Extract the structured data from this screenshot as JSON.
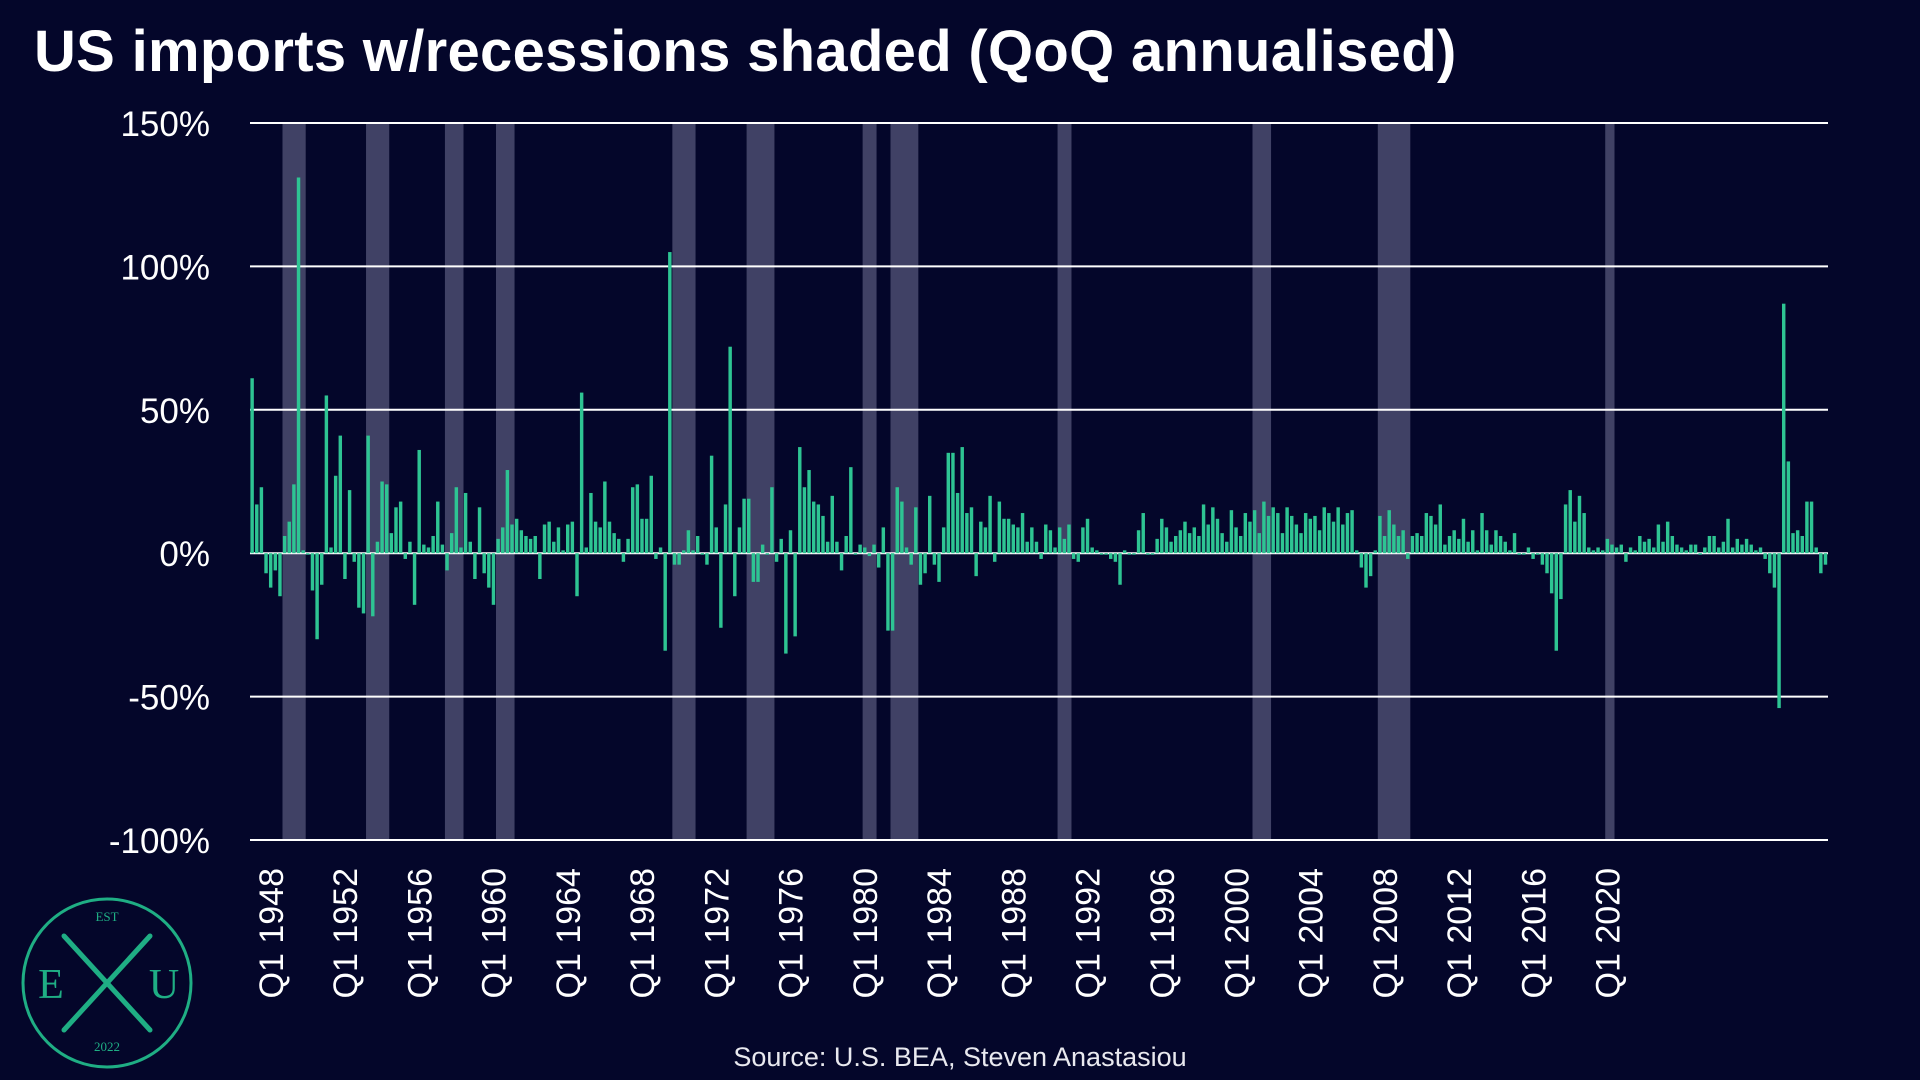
{
  "title": "US imports w/recessions shaded (QoQ annualised)",
  "source": "Source: U.S. BEA, Steven Anastasiou",
  "logo": {
    "top": "EST",
    "left": "E",
    "right": "U",
    "bottom": "2022"
  },
  "colors": {
    "background": "#04062a",
    "bar": "#2ec493",
    "recession": "#a3a3c4",
    "grid": "#ffffff",
    "logo": "#1fae84"
  },
  "chart_data": {
    "type": "bar",
    "xlabel": "",
    "ylabel": "",
    "ylim": [
      -1.0,
      1.5
    ],
    "y_ticks": [
      1.5,
      1.0,
      0.5,
      0.0,
      -0.5,
      -1.0
    ],
    "y_tick_labels": [
      "150%",
      "100%",
      "50%",
      "0%",
      "-50%",
      "-100%"
    ],
    "x_start": "Q1 1947",
    "x_tick_labels": [
      "Q1 1948",
      "Q1 1952",
      "Q1 1956",
      "Q1 1960",
      "Q1 1964",
      "Q1 1968",
      "Q1 1972",
      "Q1 1976",
      "Q1 1980",
      "Q1 1984",
      "Q1 1988",
      "Q1 1992",
      "Q1 1996",
      "Q1 2000",
      "Q1 2004",
      "Q1 2008",
      "Q1 2012",
      "Q1 2016",
      "Q1 2020"
    ],
    "recessions": [
      [
        "Q4 1948",
        "Q4 1949"
      ],
      [
        "Q2 1953",
        "Q2 1954"
      ],
      [
        "Q3 1957",
        "Q2 1958"
      ],
      [
        "Q2 1960",
        "Q1 1961"
      ],
      [
        "Q4 1969",
        "Q4 1970"
      ],
      [
        "Q4 1973",
        "Q1 1975"
      ],
      [
        "Q1 1980",
        "Q3 1980"
      ],
      [
        "Q3 1981",
        "Q4 1982"
      ],
      [
        "Q3 1990",
        "Q1 1991"
      ],
      [
        "Q1 2001",
        "Q4 2001"
      ],
      [
        "Q4 2007",
        "Q2 2009"
      ],
      [
        "Q1 2020",
        "Q2 2020"
      ]
    ],
    "values": [
      0.61,
      0.17,
      0.23,
      -0.07,
      -0.12,
      -0.06,
      -0.15,
      0.06,
      0.11,
      0.24,
      1.31,
      0.01,
      0.0,
      -0.13,
      -0.3,
      -0.11,
      0.55,
      0.02,
      0.27,
      0.41,
      -0.09,
      0.22,
      -0.03,
      -0.19,
      -0.21,
      0.41,
      -0.22,
      0.04,
      0.25,
      0.24,
      0.07,
      0.16,
      0.18,
      -0.02,
      0.04,
      -0.18,
      0.36,
      0.03,
      0.02,
      0.06,
      0.18,
      0.03,
      -0.06,
      0.07,
      0.23,
      0.02,
      0.21,
      0.04,
      -0.09,
      0.16,
      -0.07,
      -0.12,
      -0.18,
      0.05,
      0.09,
      0.29,
      0.1,
      0.12,
      0.08,
      0.06,
      0.05,
      0.06,
      -0.09,
      0.1,
      0.11,
      0.04,
      0.09,
      0.01,
      0.1,
      0.11,
      -0.15,
      0.56,
      0.02,
      0.21,
      0.11,
      0.09,
      0.25,
      0.11,
      0.07,
      0.05,
      -0.03,
      0.05,
      0.23,
      0.24,
      0.12,
      0.12,
      0.27,
      -0.02,
      0.02,
      -0.34,
      1.05,
      -0.04,
      -0.04,
      0.01,
      0.08,
      0.01,
      0.06,
      0.0,
      -0.04,
      0.34,
      0.09,
      -0.26,
      0.17,
      0.72,
      -0.15,
      0.09,
      0.19,
      0.19,
      -0.1,
      -0.1,
      0.03,
      0.0,
      0.23,
      -0.03,
      0.05,
      -0.35,
      0.08,
      -0.29,
      0.37,
      0.23,
      0.29,
      0.18,
      0.17,
      0.13,
      0.04,
      0.2,
      0.04,
      -0.06,
      0.06,
      0.3,
      0.0,
      0.03,
      0.02,
      -0.01,
      0.03,
      -0.05,
      0.09,
      -0.27,
      -0.27,
      0.23,
      0.18,
      0.02,
      -0.04,
      0.16,
      -0.11,
      -0.07,
      0.2,
      -0.04,
      -0.1,
      0.09,
      0.35,
      0.35,
      0.21,
      0.37,
      0.14,
      0.16,
      -0.08,
      0.11,
      0.09,
      0.2,
      -0.03,
      0.18,
      0.12,
      0.12,
      0.1,
      0.09,
      0.14,
      0.04,
      0.09,
      0.04,
      -0.02,
      0.1,
      0.08,
      0.02,
      0.09,
      0.05,
      0.1,
      -0.02,
      -0.03,
      0.09,
      0.12,
      0.02,
      0.01,
      0.0,
      0.0,
      -0.02,
      -0.03,
      -0.11,
      0.01,
      0.0,
      0.0,
      0.08,
      0.14,
      0.0,
      0.0,
      0.05,
      0.12,
      0.09,
      0.04,
      0.06,
      0.08,
      0.11,
      0.07,
      0.09,
      0.06,
      0.17,
      0.1,
      0.16,
      0.12,
      0.07,
      0.04,
      0.15,
      0.09,
      0.06,
      0.14,
      0.11,
      0.15,
      0.07,
      0.18,
      0.13,
      0.16,
      0.14,
      0.07,
      0.16,
      0.13,
      0.1,
      0.07,
      0.14,
      0.12,
      0.13,
      0.08,
      0.16,
      0.14,
      0.11,
      0.16,
      0.1,
      0.14,
      0.15,
      0.01,
      -0.05,
      -0.12,
      -0.08,
      0.01,
      0.13,
      0.06,
      0.15,
      0.1,
      0.06,
      0.08,
      -0.02,
      0.06,
      0.07,
      0.06,
      0.14,
      0.13,
      0.1,
      0.17,
      0.03,
      0.06,
      0.08,
      0.05,
      0.12,
      0.04,
      0.08,
      0.01,
      0.14,
      0.08,
      0.03,
      0.08,
      0.06,
      0.04,
      0.01,
      0.07,
      0.0,
      0.0,
      0.02,
      -0.02,
      0.0,
      -0.04,
      -0.07,
      -0.14,
      -0.34,
      -0.16,
      0.17,
      0.22,
      0.11,
      0.2,
      0.14,
      0.02,
      0.01,
      0.02,
      0.01,
      0.05,
      0.03,
      0.02,
      0.03,
      -0.03,
      0.02,
      0.01,
      0.06,
      0.04,
      0.05,
      0.02,
      0.1,
      0.04,
      0.11,
      0.06,
      0.03,
      0.02,
      0.01,
      0.03,
      0.03,
      0.0,
      0.02,
      0.06,
      0.06,
      0.02,
      0.04,
      0.12,
      0.02,
      0.05,
      0.03,
      0.05,
      0.03,
      0.01,
      0.02,
      -0.02,
      -0.07,
      -0.12,
      -0.54,
      0.87,
      0.32,
      0.07,
      0.08,
      0.06,
      0.18,
      0.18,
      0.02,
      -0.07,
      -0.04
    ]
  }
}
